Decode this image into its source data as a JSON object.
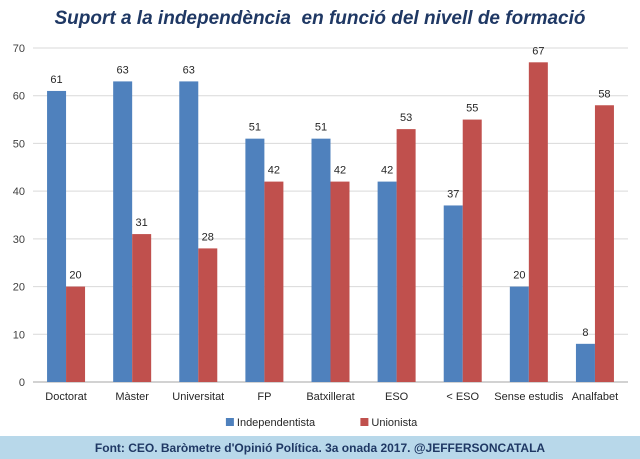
{
  "chart_data": {
    "type": "bar",
    "title": "Suport a la independència  en funció del nivell de formació",
    "categories": [
      "Doctorat",
      "Màster",
      "Universitat",
      "FP",
      "Batxillerat",
      "ESO",
      "< ESO",
      "Sense estudis",
      "Analfabet"
    ],
    "series": [
      {
        "name": "Independentista",
        "color": "#4f81bd",
        "values": [
          61,
          63,
          63,
          51,
          51,
          42,
          37,
          20,
          8
        ]
      },
      {
        "name": "Unionista",
        "color": "#c0504d",
        "values": [
          20,
          31,
          28,
          42,
          42,
          53,
          55,
          67,
          58
        ]
      }
    ],
    "ylim": [
      0,
      70
    ],
    "yticks": [
      0,
      10,
      20,
      30,
      40,
      50,
      60,
      70
    ],
    "grid": true,
    "legend": "bottom"
  },
  "footer": "Font: CEO. Baròmetre d'Opinió Política. 3a onada 2017. @JEFFERSONCATALA"
}
